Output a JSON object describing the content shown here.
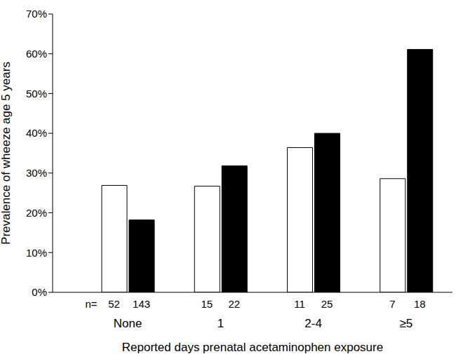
{
  "chart_data": {
    "type": "bar",
    "x_label": "Reported days prenatal acetaminophen exposure",
    "y_label": "Prevalence of wheeze age 5 years",
    "categories": [
      "None",
      "1",
      "2-4",
      "≥5"
    ],
    "series": [
      {
        "color": "#ffffff",
        "values": [
          26.9,
          26.7,
          36.4,
          28.6
        ],
        "n": [
          52,
          15,
          11,
          7
        ]
      },
      {
        "color": "#000000",
        "values": [
          18.2,
          31.8,
          40.0,
          61.1
        ],
        "n": [
          143,
          22,
          25,
          18
        ]
      }
    ],
    "n_label": "n=",
    "ylim": [
      0,
      70
    ],
    "yticks": [
      {
        "value": 0,
        "label": "0%"
      },
      {
        "value": 10,
        "label": "10%"
      },
      {
        "value": 20,
        "label": "20%"
      },
      {
        "value": 30,
        "label": "30%"
      },
      {
        "value": 40,
        "label": "40%"
      },
      {
        "value": 50,
        "label": "50%"
      },
      {
        "value": 60,
        "label": "60%"
      },
      {
        "value": 70,
        "label": "70%"
      }
    ],
    "grid": false
  }
}
